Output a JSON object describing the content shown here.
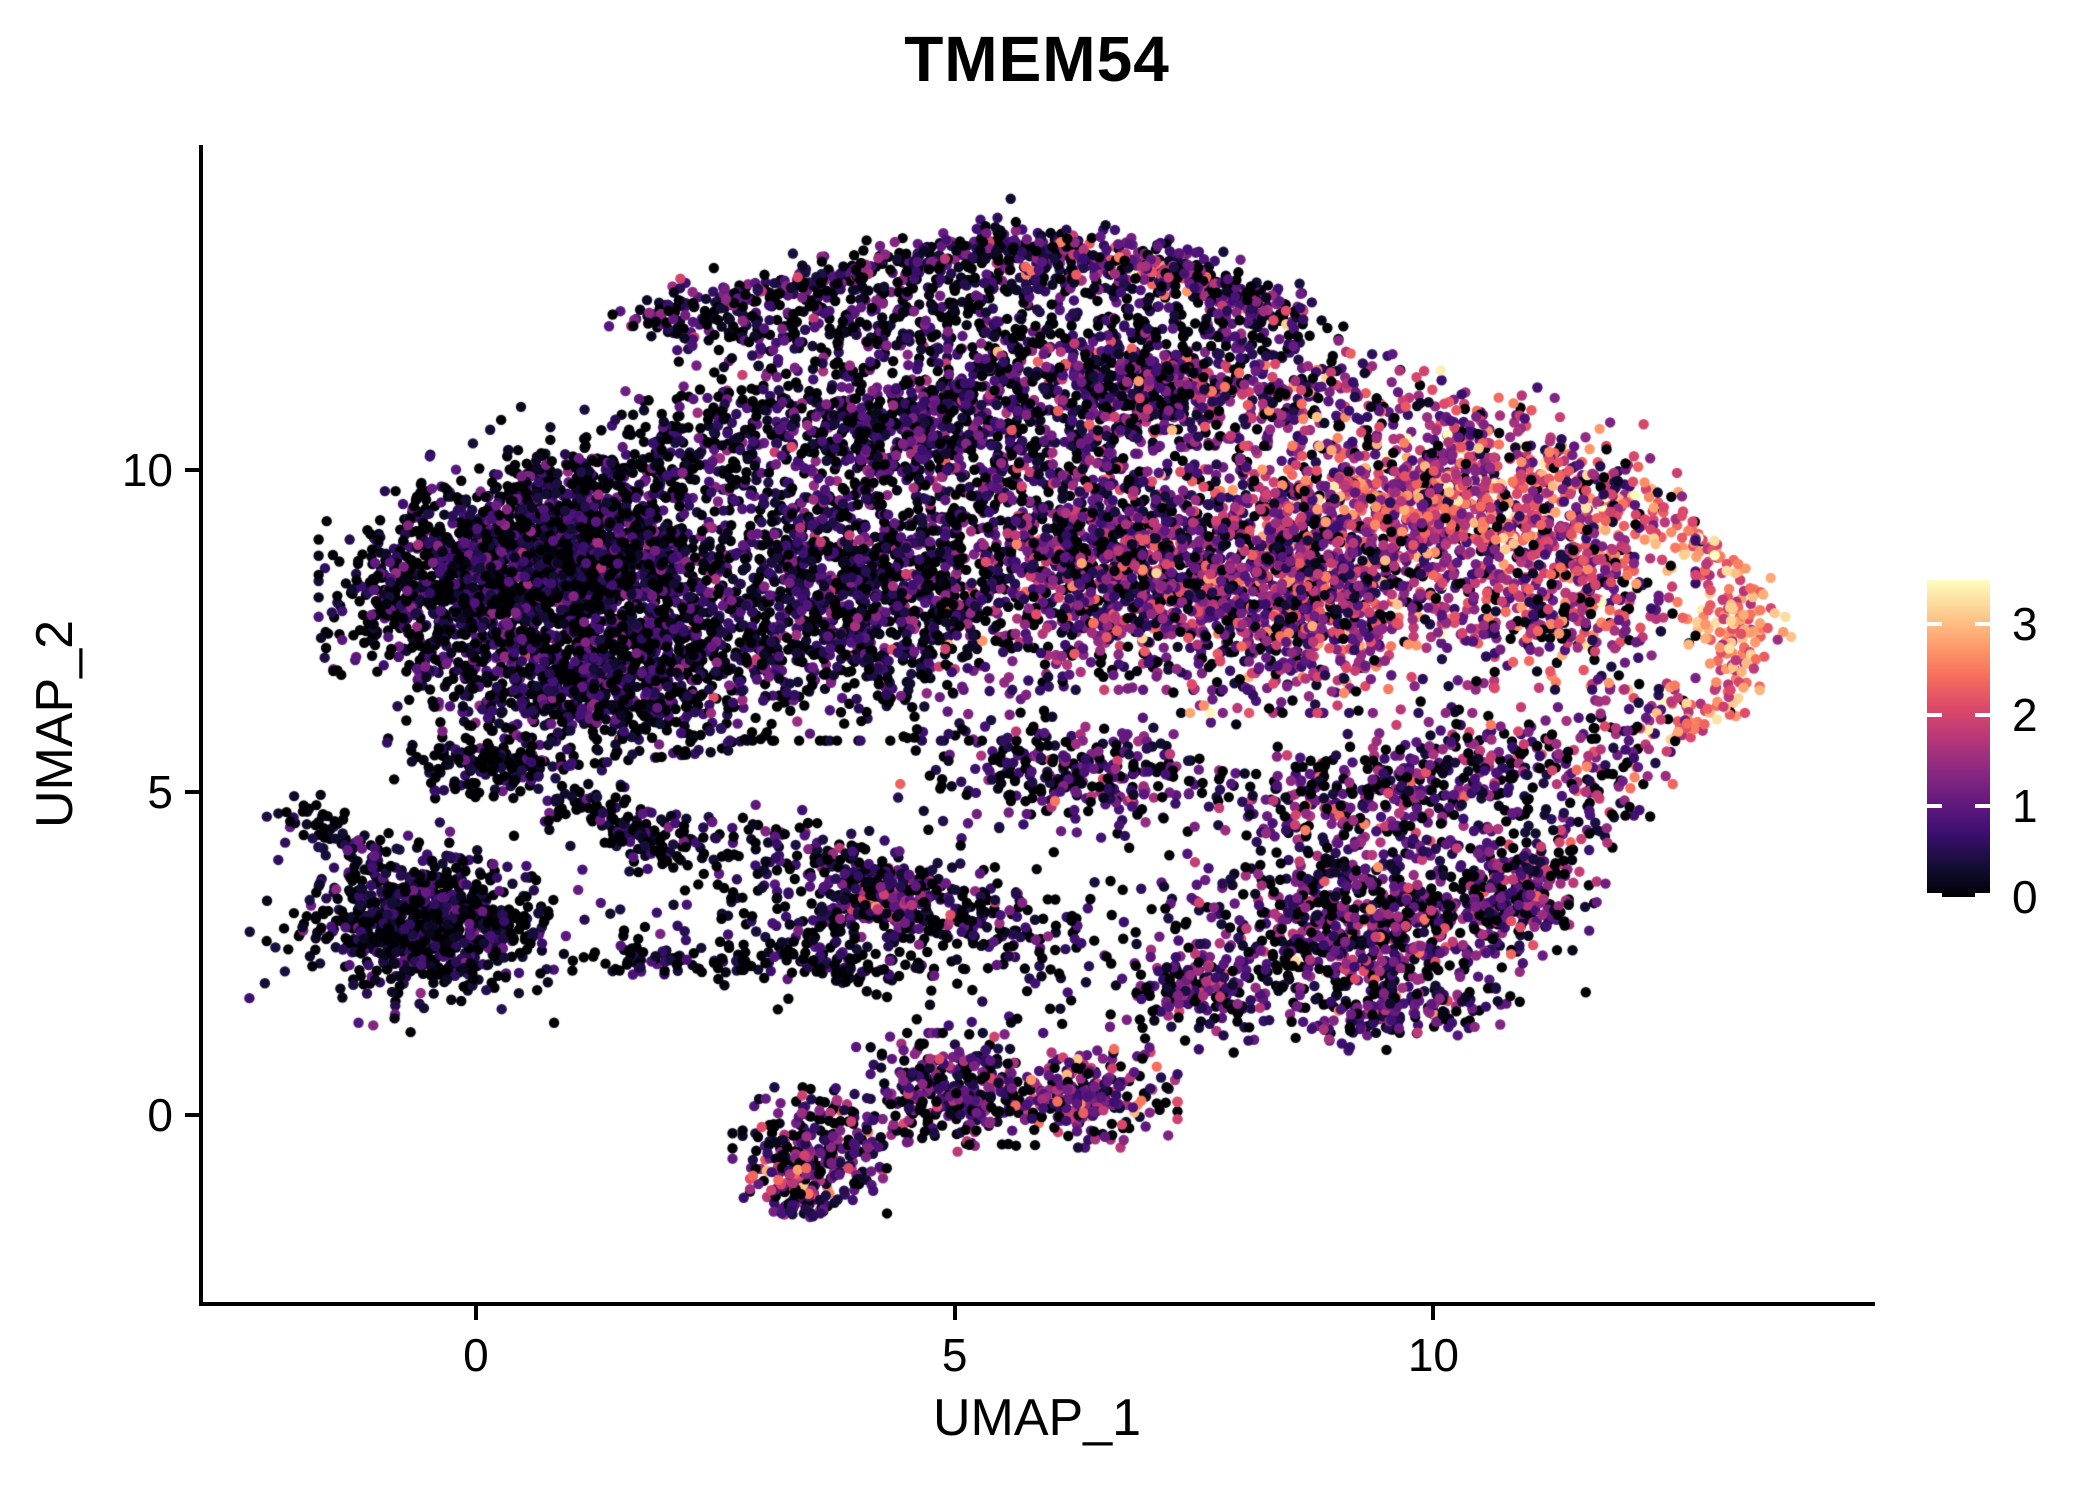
{
  "title": "TMEM54",
  "chart_data": {
    "type": "scatter",
    "title": "TMEM54",
    "xlabel": "UMAP_1",
    "ylabel": "UMAP_2",
    "xlim": [
      -2.85,
      14.57
    ],
    "ylim": [
      -2.9,
      15.0
    ],
    "x_ticks": [
      "0",
      "5",
      "10"
    ],
    "x_tick_values": [
      0,
      5,
      10
    ],
    "y_ticks": [
      "0",
      "5",
      "10"
    ],
    "y_tick_values": [
      0,
      5,
      10
    ],
    "grid": false,
    "legend": {
      "type": "colorbar",
      "position": "right",
      "tick_labels": [
        "0",
        "1",
        "2",
        "3"
      ],
      "tick_values": [
        0,
        1,
        2,
        3
      ],
      "vmin": 0,
      "vmax": 3.48
    },
    "colormap": {
      "name": "magma",
      "stops": [
        "#000004",
        "#140e36",
        "#3b0f70",
        "#641a80",
        "#8c2981",
        "#b73779",
        "#de4968",
        "#f7705c",
        "#fe9f6d",
        "#fecf92",
        "#fcfdbf"
      ]
    },
    "point_radius_px": 5.2,
    "seed": 20240542,
    "clusters": [
      {
        "name": "left-lobe-upper",
        "shape": "gauss",
        "n": 1600,
        "cx": 1.0,
        "cy": 8.6,
        "rx": 1.55,
        "ry": 1.35,
        "rot": -12,
        "expr": {
          "p_zero": 0.38,
          "mean": 0.55,
          "sd": 0.5
        }
      },
      {
        "name": "left-lobe-lower",
        "shape": "gauss",
        "n": 1100,
        "cx": 1.35,
        "cy": 6.8,
        "rx": 1.6,
        "ry": 1.15,
        "rot": 8,
        "expr": {
          "p_zero": 0.4,
          "mean": 0.5,
          "sd": 0.45
        }
      },
      {
        "name": "left-edge",
        "shape": "gauss",
        "n": 480,
        "cx": -0.55,
        "cy": 8.0,
        "rx": 0.95,
        "ry": 1.45,
        "rot": 0,
        "expr": {
          "p_zero": 0.44,
          "mean": 0.5,
          "sd": 0.42
        }
      },
      {
        "name": "topleft-diag",
        "shape": "line",
        "n": 420,
        "x1": 0.1,
        "y1": 9.1,
        "x2": 3.1,
        "y2": 10.9,
        "jx": 0.5,
        "jy": 0.42,
        "expr": {
          "p_zero": 0.4,
          "mean": 0.5,
          "sd": 0.45
        }
      },
      {
        "name": "mid-lobe",
        "shape": "gauss",
        "n": 1450,
        "cx": 4.0,
        "cy": 8.1,
        "rx": 1.85,
        "ry": 2.0,
        "rot": 0,
        "expr": {
          "p_zero": 0.35,
          "mean": 0.6,
          "sd": 0.55
        }
      },
      {
        "name": "mid-upper",
        "shape": "gauss",
        "n": 780,
        "cx": 4.6,
        "cy": 10.6,
        "rx": 1.8,
        "ry": 1.15,
        "rot": -6,
        "expr": {
          "p_zero": 0.33,
          "mean": 0.65,
          "sd": 0.5
        }
      },
      {
        "name": "center-high",
        "shape": "gauss",
        "n": 1350,
        "cx": 6.8,
        "cy": 8.6,
        "rx": 1.65,
        "ry": 1.75,
        "rot": 0,
        "expr": {
          "p_zero": 0.18,
          "mean": 1.05,
          "sd": 0.7
        }
      },
      {
        "name": "right-high",
        "shape": "gauss",
        "n": 1250,
        "cx": 8.8,
        "cy": 8.3,
        "rx": 1.6,
        "ry": 1.8,
        "rot": 0,
        "expr": {
          "p_zero": 0.15,
          "mean": 1.35,
          "sd": 0.75
        }
      },
      {
        "name": "right-hot-band",
        "shape": "gauss",
        "n": 500,
        "cx": 10.0,
        "cy": 9.5,
        "rx": 1.6,
        "ry": 0.85,
        "rot": -8,
        "expr": {
          "p_zero": 0.1,
          "mean": 1.85,
          "sd": 0.7
        }
      },
      {
        "name": "far-right-lobe",
        "shape": "gauss",
        "n": 540,
        "cx": 11.3,
        "cy": 8.2,
        "rx": 1.25,
        "ry": 1.4,
        "rot": 0,
        "expr": {
          "p_zero": 0.15,
          "mean": 1.6,
          "sd": 0.8
        }
      },
      {
        "name": "top-right-edge",
        "shape": "line",
        "n": 340,
        "x1": 8.7,
        "y1": 11.3,
        "x2": 11.9,
        "y2": 9.8,
        "jx": 0.45,
        "jy": 0.4,
        "expr": {
          "p_zero": 0.12,
          "mean": 1.5,
          "sd": 0.8
        }
      },
      {
        "name": "top-mid-edge",
        "shape": "gauss",
        "n": 520,
        "cx": 7.2,
        "cy": 11.2,
        "rx": 1.6,
        "ry": 0.85,
        "rot": -4,
        "expr": {
          "p_zero": 0.2,
          "mean": 1.0,
          "sd": 0.7
        }
      },
      {
        "name": "right-rim",
        "shape": "path",
        "n": 240,
        "pts": [
          [
            11.0,
            10.0
          ],
          [
            12.3,
            9.3
          ],
          [
            13.15,
            8.3
          ],
          [
            13.35,
            7.3
          ],
          [
            12.9,
            6.35
          ],
          [
            12.25,
            5.85
          ]
        ],
        "j": 0.2,
        "expr": {
          "p_zero": 0.05,
          "mean": 2.35,
          "sd": 0.55
        }
      },
      {
        "name": "right-rim-hot",
        "shape": "gauss",
        "n": 55,
        "cx": 13.1,
        "cy": 7.5,
        "rx": 0.3,
        "ry": 0.55,
        "rot": 0,
        "expr": {
          "p_zero": 0.02,
          "mean": 2.85,
          "sd": 0.4
        }
      },
      {
        "name": "top-arm-rim",
        "shape": "path",
        "n": 540,
        "pts": [
          [
            1.65,
            12.3
          ],
          [
            3.4,
            12.85
          ],
          [
            5.4,
            13.5
          ],
          [
            7.2,
            13.25
          ],
          [
            8.6,
            12.35
          ]
        ],
        "j": 0.17,
        "expr": {
          "p_zero": 0.3,
          "mean": 0.75,
          "sd": 0.6
        }
      },
      {
        "name": "top-arm-rim-hot",
        "shape": "path",
        "n": 150,
        "pts": [
          [
            5.9,
            13.3
          ],
          [
            7.2,
            13.1
          ],
          [
            8.3,
            12.5
          ]
        ],
        "j": 0.15,
        "expr": {
          "p_zero": 0.1,
          "mean": 1.6,
          "sd": 0.75
        }
      },
      {
        "name": "top-arm-fill",
        "shape": "path",
        "n": 430,
        "pts": [
          [
            2.2,
            12.0
          ],
          [
            3.6,
            12.4
          ],
          [
            5.4,
            13.0
          ],
          [
            7.1,
            12.8
          ],
          [
            8.5,
            11.9
          ]
        ],
        "j": 0.35,
        "expr": {
          "p_zero": 0.35,
          "mean": 0.6,
          "sd": 0.5
        }
      },
      {
        "name": "arm-underside",
        "shape": "gauss",
        "n": 230,
        "cx": 5.2,
        "cy": 12.2,
        "rx": 2.1,
        "ry": 0.65,
        "rot": 0,
        "expr": {
          "p_zero": 0.4,
          "mean": 0.55,
          "sd": 0.5
        }
      },
      {
        "name": "upper-gap",
        "shape": "gauss",
        "n": 200,
        "cx": 6.6,
        "cy": 11.5,
        "rx": 2.4,
        "ry": 0.6,
        "rot": 0,
        "expr": {
          "p_zero": 0.33,
          "mean": 0.7,
          "sd": 0.6
        }
      },
      {
        "name": "left-island-core",
        "shape": "gauss",
        "n": 600,
        "cx": -0.55,
        "cy": 2.95,
        "rx": 1.05,
        "ry": 0.95,
        "rot": -15,
        "expr": {
          "p_zero": 0.42,
          "mean": 0.45,
          "sd": 0.4
        }
      },
      {
        "name": "left-island-fringe",
        "shape": "gauss",
        "n": 230,
        "cx": -0.5,
        "cy": 2.9,
        "rx": 1.55,
        "ry": 1.4,
        "rot": -15,
        "expr": {
          "p_zero": 0.45,
          "mean": 0.45,
          "sd": 0.4
        }
      },
      {
        "name": "left-island-tail",
        "shape": "path",
        "n": 70,
        "pts": [
          [
            -1.9,
            4.65
          ],
          [
            -1.45,
            4.3
          ],
          [
            -0.95,
            3.85
          ]
        ],
        "j": 0.16,
        "expr": {
          "p_zero": 0.45,
          "mean": 0.4,
          "sd": 0.35
        }
      },
      {
        "name": "bottom-island-left",
        "shape": "gauss",
        "n": 250,
        "cx": 3.6,
        "cy": -0.55,
        "rx": 0.8,
        "ry": 0.85,
        "rot": 0,
        "expr": {
          "p_zero": 0.3,
          "mean": 0.75,
          "sd": 0.6
        }
      },
      {
        "name": "bottom-island-hot",
        "shape": "gauss",
        "n": 65,
        "cx": 3.3,
        "cy": -1.0,
        "rx": 0.38,
        "ry": 0.38,
        "rot": 0,
        "expr": {
          "p_zero": 0.08,
          "mean": 1.8,
          "sd": 0.6
        }
      },
      {
        "name": "bottom-island-tail",
        "shape": "gauss",
        "n": 40,
        "cx": 3.4,
        "cy": -1.4,
        "rx": 0.3,
        "ry": 0.22,
        "rot": 0,
        "expr": {
          "p_zero": 0.3,
          "mean": 0.8,
          "sd": 0.6
        }
      },
      {
        "name": "bottom-island-mid",
        "shape": "gauss",
        "n": 320,
        "cx": 5.0,
        "cy": 0.35,
        "rx": 0.95,
        "ry": 0.8,
        "rot": 0,
        "expr": {
          "p_zero": 0.28,
          "mean": 0.85,
          "sd": 0.65
        }
      },
      {
        "name": "bottom-island-right",
        "shape": "gauss",
        "n": 270,
        "cx": 6.35,
        "cy": 0.3,
        "rx": 0.85,
        "ry": 0.7,
        "rot": 0,
        "expr": {
          "p_zero": 0.22,
          "mean": 1.05,
          "sd": 0.7
        }
      },
      {
        "name": "streak-a",
        "shape": "line",
        "n": 150,
        "x1": 0.9,
        "y1": 5.0,
        "x2": 2.2,
        "y2": 4.0,
        "jx": 0.25,
        "jy": 0.2,
        "expr": {
          "p_zero": 0.45,
          "mean": 0.45,
          "sd": 0.4
        }
      },
      {
        "name": "streak-b",
        "shape": "line",
        "n": 240,
        "x1": 2.9,
        "y1": 4.35,
        "x2": 5.3,
        "y2": 2.95,
        "jx": 0.3,
        "jy": 0.22,
        "expr": {
          "p_zero": 0.4,
          "mean": 0.55,
          "sd": 0.5
        }
      },
      {
        "name": "mid-band-clump",
        "shape": "gauss",
        "n": 130,
        "cx": 4.25,
        "cy": 3.35,
        "rx": 0.5,
        "ry": 0.4,
        "rot": 0,
        "expr": {
          "p_zero": 0.18,
          "mean": 1.1,
          "sd": 0.6
        }
      },
      {
        "name": "mid-band-clump-hot",
        "shape": "gauss",
        "n": 25,
        "cx": 4.2,
        "cy": 3.3,
        "rx": 0.2,
        "ry": 0.16,
        "rot": 0,
        "expr": {
          "p_zero": 0.02,
          "mean": 2.2,
          "sd": 0.4
        }
      },
      {
        "name": "mid-band-scatter",
        "shape": "gauss",
        "n": 400,
        "cx": 4.6,
        "cy": 3.0,
        "rx": 3.1,
        "ry": 1.35,
        "rot": -8,
        "expr": {
          "p_zero": 0.45,
          "mean": 0.5,
          "sd": 0.45
        }
      },
      {
        "name": "low-line",
        "shape": "line",
        "n": 140,
        "x1": 1.5,
        "y1": 2.45,
        "x2": 4.4,
        "y2": 2.25,
        "jx": 0.3,
        "jy": 0.14,
        "expr": {
          "p_zero": 0.5,
          "mean": 0.4,
          "sd": 0.38
        }
      },
      {
        "name": "blob-bottom-mid",
        "shape": "gauss",
        "n": 330,
        "cx": 6.3,
        "cy": 5.3,
        "rx": 1.6,
        "ry": 0.8,
        "rot": -6,
        "expr": {
          "p_zero": 0.3,
          "mean": 0.8,
          "sd": 0.6
        }
      },
      {
        "name": "right-bottom-core",
        "shape": "gauss",
        "n": 850,
        "cx": 9.3,
        "cy": 3.0,
        "rx": 1.75,
        "ry": 1.35,
        "rot": 12,
        "expr": {
          "p_zero": 0.3,
          "mean": 0.9,
          "sd": 0.65
        }
      },
      {
        "name": "right-bottom-right",
        "shape": "gauss",
        "n": 210,
        "cx": 10.9,
        "cy": 3.5,
        "rx": 0.7,
        "ry": 1.0,
        "rot": 0,
        "expr": {
          "p_zero": 0.3,
          "mean": 1.0,
          "sd": 0.7
        }
      },
      {
        "name": "right-bottom-tail",
        "shape": "gauss",
        "n": 150,
        "cx": 9.6,
        "cy": 1.6,
        "rx": 0.95,
        "ry": 0.5,
        "rot": 8,
        "expr": {
          "p_zero": 0.35,
          "mean": 0.8,
          "sd": 0.6
        }
      },
      {
        "name": "right-bottom-bridge",
        "shape": "gauss",
        "n": 170,
        "cx": 7.6,
        "cy": 1.9,
        "rx": 0.85,
        "ry": 0.65,
        "rot": 0,
        "expr": {
          "p_zero": 0.3,
          "mean": 0.9,
          "sd": 0.6
        }
      },
      {
        "name": "right-bottom-upper",
        "shape": "gauss",
        "n": 250,
        "cx": 9.2,
        "cy": 4.9,
        "rx": 1.25,
        "ry": 0.7,
        "rot": 0,
        "expr": {
          "p_zero": 0.28,
          "mean": 1.0,
          "sd": 0.7
        }
      },
      {
        "name": "right-mid-sparse",
        "shape": "gauss",
        "n": 200,
        "cx": 10.6,
        "cy": 5.4,
        "rx": 1.3,
        "ry": 0.8,
        "rot": 0,
        "expr": {
          "p_zero": 0.3,
          "mean": 1.0,
          "sd": 0.7
        }
      },
      {
        "name": "right-lower-edge",
        "shape": "line",
        "n": 160,
        "x1": 12.25,
        "y1": 6.3,
        "x2": 11.0,
        "y2": 3.4,
        "jx": 0.3,
        "jy": 0.3,
        "expr": {
          "p_zero": 0.25,
          "mean": 1.2,
          "sd": 0.7
        }
      },
      {
        "name": "left-low-tail",
        "shape": "gauss",
        "n": 130,
        "cx": 0.0,
        "cy": 5.4,
        "rx": 0.85,
        "ry": 0.5,
        "rot": -10,
        "expr": {
          "p_zero": 0.45,
          "mean": 0.4,
          "sd": 0.4
        }
      }
    ]
  },
  "colors": {
    "background": "#ffffff",
    "axis": "#000000",
    "text": "#000000",
    "colorbar_tick": "#ffffff"
  }
}
